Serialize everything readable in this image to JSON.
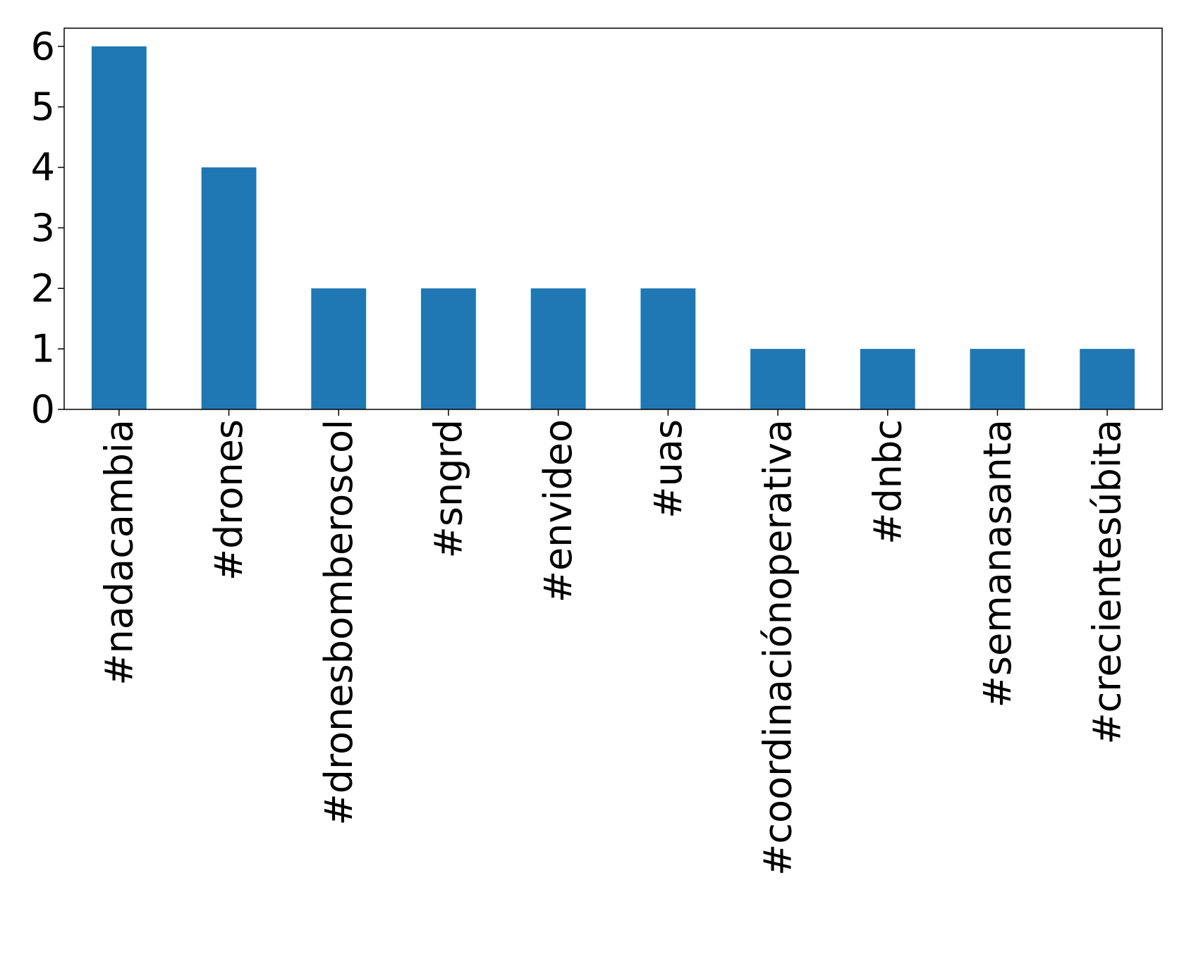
{
  "chart_data": {
    "type": "bar",
    "categories": [
      "#nadacambia",
      "#drones",
      "#dronesbomberoscol",
      "#sngrd",
      "#envideo",
      "#uas",
      "#coordinaciónoperativa",
      "#dnbc",
      "#semanasanta",
      "#crecientesúbita"
    ],
    "values": [
      6,
      4,
      2,
      2,
      2,
      2,
      1,
      1,
      1,
      1
    ],
    "color": "#1f77b4",
    "ylim": [
      0,
      6.3
    ],
    "yticks": [
      0,
      1,
      2,
      3,
      4,
      5,
      6
    ],
    "grid": false
  }
}
